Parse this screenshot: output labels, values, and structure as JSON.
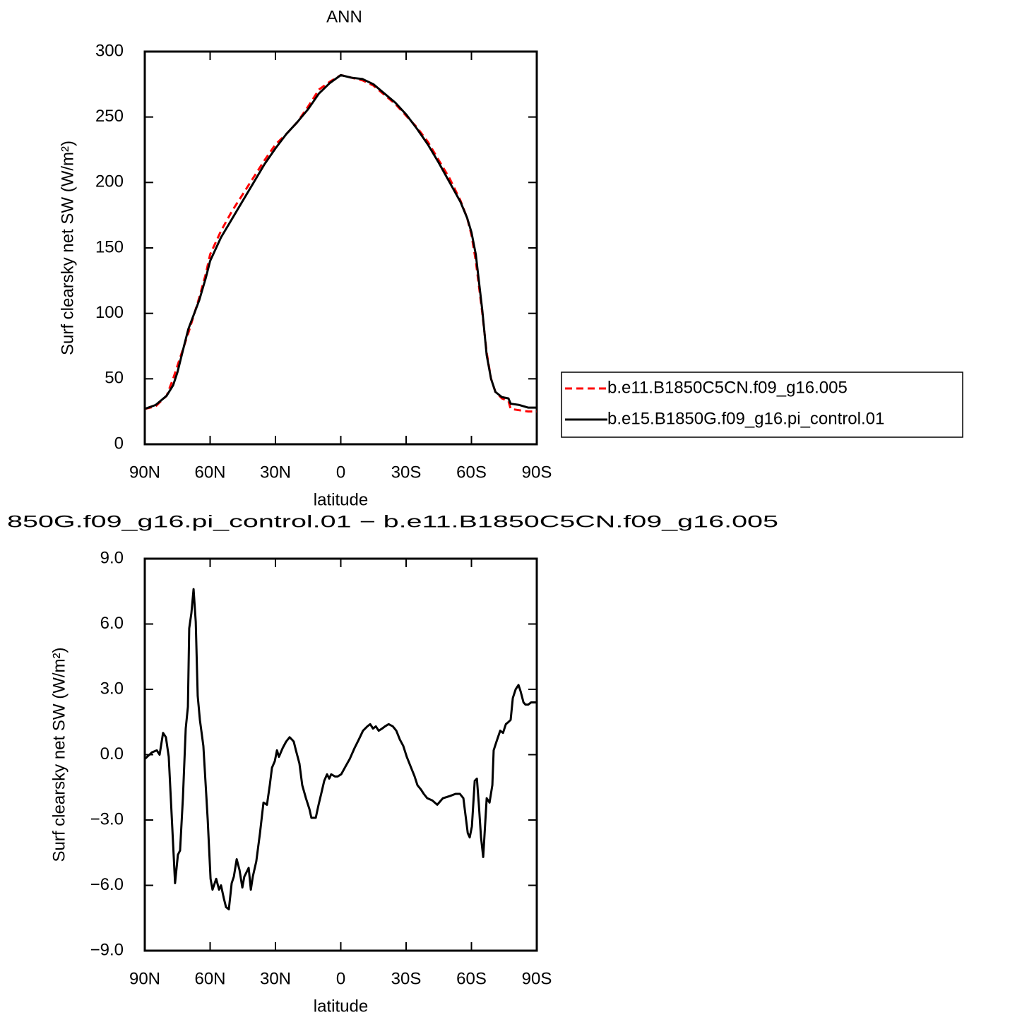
{
  "chart_data": [
    {
      "type": "line",
      "title": "ANN",
      "xlabel": "latitude",
      "ylabel": "Surf clearsky net SW (W/m²)",
      "x": [
        90,
        85,
        80,
        77,
        75,
        72,
        70,
        65,
        62,
        60,
        55,
        50,
        45,
        40,
        35,
        30,
        25,
        20,
        15,
        10,
        5,
        0,
        -5,
        -10,
        -15,
        -20,
        -25,
        -30,
        -35,
        -40,
        -45,
        -50,
        -55,
        -58,
        -60,
        -62,
        -65,
        -67,
        -69,
        -71,
        -74,
        -77,
        -78,
        -82,
        -86,
        -90
      ],
      "series": [
        {
          "name": "b.e11.B1850C5CN.f09_g16.005",
          "color": "#ff0000",
          "line_style": "dashed",
          "values": [
            27,
            29,
            37,
            50,
            60,
            75,
            85,
            112,
            130,
            145,
            163,
            178,
            191,
            204,
            217,
            229,
            237,
            246,
            258,
            271,
            277,
            282,
            280,
            278,
            274,
            267,
            260,
            251,
            242,
            231,
            217,
            203,
            186,
            173,
            160,
            140,
            100,
            70,
            50,
            40,
            35,
            33,
            27,
            26,
            25,
            25
          ]
        },
        {
          "name": "b.e15.B1850G.f09_g16.pi_control.01",
          "color": "#000000",
          "line_style": "solid",
          "values": [
            27,
            30,
            37,
            45,
            55,
            75,
            88,
            110,
            127,
            140,
            158,
            172,
            186,
            200,
            214,
            226,
            237,
            246,
            256,
            268,
            276,
            282,
            280,
            279,
            275,
            268,
            261,
            252,
            241,
            229,
            215,
            200,
            185,
            173,
            162,
            145,
            102,
            68,
            50,
            40,
            36,
            35,
            31,
            30,
            28,
            28
          ]
        }
      ],
      "xlim": [
        90,
        -90
      ],
      "xticks": [
        {
          "value": 90,
          "label": "90N"
        },
        {
          "value": 60,
          "label": "60N"
        },
        {
          "value": 30,
          "label": "30N"
        },
        0,
        {
          "value": -30,
          "label": "30S"
        },
        {
          "value": -60,
          "label": "60S"
        },
        {
          "value": -90,
          "label": "90S"
        }
      ],
      "ylim": [
        0,
        300
      ],
      "yticks": [
        0,
        50,
        100,
        150,
        200,
        250,
        300
      ]
    },
    {
      "type": "line",
      "title": "850G.f09_g16.pi_control.01 − b.e11.B1850C5CN.f09_g16.005",
      "xlabel": "latitude",
      "ylabel": "Surf clearsky net SW (W/m²)",
      "x": [
        90,
        86.8,
        84.5,
        83.2,
        81.6,
        80.3,
        79,
        77.7,
        76.1,
        74.8,
        73.8,
        72.5,
        71.2,
        70.2,
        69.6,
        68.6,
        67.6,
        66.6,
        65.7,
        64.7,
        63.1,
        61.8,
        61.1,
        59.8,
        58.9,
        57.2,
        55.9,
        55,
        53.7,
        52.7,
        51.4,
        50.1,
        49.1,
        47.8,
        46.5,
        45.2,
        44.3,
        42.3,
        41.3,
        40.4,
        38.8,
        37.1,
        35.5,
        33.9,
        32.6,
        31.6,
        30.3,
        29.3,
        28.4,
        26.7,
        25.1,
        23.5,
        22.5,
        21.6,
        20.6,
        19,
        17.7,
        16,
        14.4,
        13.5,
        11.5,
        10.2,
        9,
        7.6,
        6.3,
        5.3,
        4.4,
        2.7,
        1.4,
        -0.2,
        -2.4,
        -4.1,
        -6.3,
        -8.3,
        -10.2,
        -12.2,
        -13.5,
        -14.8,
        -16.1,
        -17.4,
        -19,
        -20.3,
        -22,
        -23.9,
        -25.5,
        -27.1,
        -28.7,
        -30.3,
        -32.3,
        -33.9,
        -35.2,
        -36.8,
        -38.1,
        -39.7,
        -42,
        -44.3,
        -46.9,
        -50.1,
        -52.7,
        -54.7,
        -56.3,
        -57.3,
        -58.3,
        -59.2,
        -60.2,
        -61.5,
        -62.5,
        -63.4,
        -64.4,
        -65.4,
        -67,
        -68.3,
        -69.6,
        -70.2,
        -71.5,
        -73.2,
        -74.5,
        -75.8,
        -77,
        -78,
        -79,
        -80.3,
        -81.6,
        -82.6,
        -83.9,
        -84.8,
        -86.1,
        -87.4,
        -88.7,
        -90
      ],
      "series": [
        {
          "color": "#000000",
          "line_style": "solid",
          "values": [
            -0.2,
            0.1,
            0.2,
            0,
            1.0,
            0.8,
            -0.1,
            -2.7,
            -5.9,
            -4.6,
            -4.4,
            -2.0,
            1.2,
            2.2,
            5.8,
            6.5,
            7.6,
            6.1,
            2.7,
            1.6,
            0.4,
            -1.8,
            -3.0,
            -5.7,
            -6.2,
            -5.7,
            -6.2,
            -6.0,
            -6.6,
            -7.0,
            -7.1,
            -5.9,
            -5.6,
            -4.8,
            -5.3,
            -6.1,
            -5.6,
            -5.2,
            -6.2,
            -5.6,
            -4.9,
            -3.6,
            -2.2,
            -2.3,
            -1.4,
            -0.6,
            -0.3,
            0.2,
            -0.1,
            0.3,
            0.6,
            0.8,
            0.7,
            0.6,
            0.2,
            -0.4,
            -1.4,
            -2.0,
            -2.5,
            -2.9,
            -2.9,
            -2.3,
            -1.8,
            -1.2,
            -0.9,
            -1.1,
            -0.9,
            -1.0,
            -1.0,
            -0.9,
            -0.5,
            -0.2,
            0.3,
            0.7,
            1.1,
            1.3,
            1.4,
            1.2,
            1.3,
            1.1,
            1.2,
            1.3,
            1.4,
            1.3,
            1.1,
            0.7,
            0.4,
            -0.1,
            -0.6,
            -1.0,
            -1.4,
            -1.6,
            -1.8,
            -2.0,
            -2.1,
            -2.3,
            -2.0,
            -1.9,
            -1.8,
            -1.8,
            -2.0,
            -2.8,
            -3.6,
            -3.8,
            -3.3,
            -1.2,
            -1.1,
            -2.3,
            -3.8,
            -4.7,
            -2.0,
            -2.2,
            -1.4,
            0.2,
            0.6,
            1.1,
            1.0,
            1.4,
            1.5,
            1.6,
            2.6,
            3.0,
            3.2,
            2.9,
            2.4,
            2.3,
            2.3,
            2.4,
            2.4,
            2.4
          ]
        }
      ],
      "xlim": [
        90,
        -90
      ],
      "xticks": [
        {
          "value": 90,
          "label": "90N"
        },
        {
          "value": 60,
          "label": "60N"
        },
        {
          "value": 30,
          "label": "30N"
        },
        0,
        {
          "value": -30,
          "label": "30S"
        },
        {
          "value": -60,
          "label": "60S"
        },
        {
          "value": -90,
          "label": "90S"
        }
      ],
      "ylim": [
        -9,
        9
      ],
      "yticks": [
        {
          "value": -9,
          "label": "−9.0"
        },
        {
          "value": -6,
          "label": "−6.0"
        },
        {
          "value": -3,
          "label": "−3.0"
        },
        {
          "value": 0,
          "label": "0.0"
        },
        {
          "value": 3,
          "label": "3.0"
        },
        {
          "value": 6,
          "label": "6.0"
        },
        {
          "value": 9,
          "label": "9.0"
        }
      ]
    }
  ]
}
